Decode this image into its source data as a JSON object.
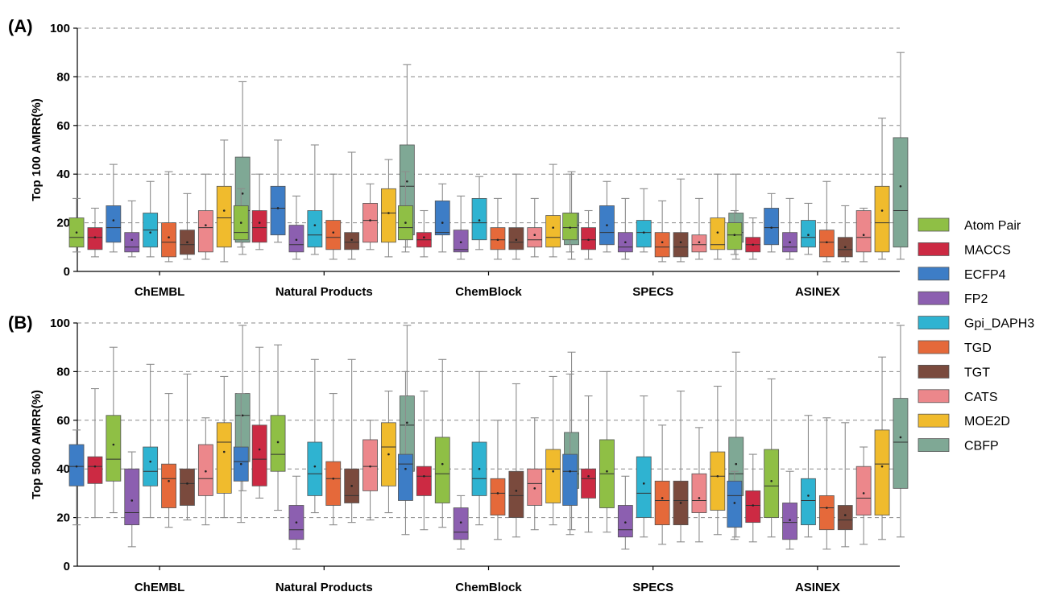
{
  "chart_data": [
    {
      "panel_label": "(A)",
      "type": "box",
      "ylabel": "Top 100 AMRR(%)",
      "ylim": [
        0,
        100
      ],
      "yticks": [
        0,
        20,
        40,
        60,
        80,
        100
      ],
      "grid": "horizontal dashed",
      "categories": [
        "ChEMBL",
        "Natural Products",
        "ChemBlock",
        "SPECS",
        "ASINEX"
      ],
      "series": [
        {
          "name": "Atom Pair",
          "boxes": [
            [
              8,
              10,
              14,
              22,
              30,
              16
            ],
            [
              10,
              13,
              16,
              27,
              34,
              20
            ],
            [
              8,
              13,
              18,
              27,
              41,
              20
            ],
            [
              8,
              13,
              18,
              24,
              40,
              18
            ],
            [
              7,
              9,
              15,
              20,
              25,
              15
            ]
          ]
        },
        {
          "name": "MACCS",
          "boxes": [
            [
              6,
              9,
              14,
              18,
              26,
              14
            ],
            [
              9,
              12,
              18,
              25,
              40,
              20
            ],
            [
              6,
              10,
              13,
              16,
              25,
              14
            ],
            [
              5,
              9,
              13,
              18,
              25,
              13
            ],
            [
              5,
              8,
              11,
              14,
              22,
              11
            ]
          ]
        },
        {
          "name": "ECFP4",
          "boxes": [
            [
              8,
              12,
              18,
              27,
              44,
              21
            ],
            [
              12,
              15,
              26,
              35,
              54,
              26
            ],
            [
              8,
              15,
              16,
              29,
              36,
              20
            ],
            [
              8,
              11,
              16,
              27,
              37,
              19
            ],
            [
              8,
              11,
              18,
              26,
              32,
              18
            ]
          ]
        },
        {
          "name": "FP2",
          "boxes": [
            [
              6,
              8,
              10,
              16,
              29,
              13
            ],
            [
              5,
              8,
              11,
              19,
              31,
              13
            ],
            [
              5,
              8,
              9,
              17,
              31,
              12
            ],
            [
              5,
              8,
              10,
              16,
              30,
              12
            ],
            [
              5,
              8,
              10,
              16,
              30,
              12
            ]
          ]
        },
        {
          "name": "Gpi_DAPH3",
          "boxes": [
            [
              6,
              10,
              17,
              24,
              37,
              16
            ],
            [
              7,
              10,
              15,
              25,
              52,
              19
            ],
            [
              9,
              13,
              20,
              30,
              39,
              21
            ],
            [
              8,
              10,
              16,
              21,
              34,
              16
            ],
            [
              7,
              10,
              14,
              21,
              28,
              15
            ]
          ]
        },
        {
          "name": "TGD",
          "boxes": [
            [
              4,
              6,
              12,
              20,
              41,
              14
            ],
            [
              5,
              9,
              14,
              21,
              40,
              16
            ],
            [
              5,
              9,
              13,
              18,
              30,
              13
            ],
            [
              4,
              6,
              10,
              16,
              29,
              12
            ],
            [
              4,
              6,
              12,
              17,
              37,
              12
            ]
          ]
        },
        {
          "name": "TGT",
          "boxes": [
            [
              5,
              7,
              11,
              17,
              32,
              12
            ],
            [
              5,
              9,
              12,
              16,
              49,
              13
            ],
            [
              5,
              9,
              12,
              18,
              40,
              13
            ],
            [
              4,
              6,
              10,
              16,
              38,
              12
            ],
            [
              4,
              6,
              9,
              14,
              27,
              10
            ]
          ]
        },
        {
          "name": "CATS",
          "boxes": [
            [
              5,
              8,
              18,
              25,
              40,
              19
            ],
            [
              9,
              12,
              21,
              28,
              36,
              21
            ],
            [
              6,
              10,
              13,
              18,
              30,
              15
            ],
            [
              5,
              8,
              11,
              15,
              30,
              12
            ],
            [
              4,
              8,
              14,
              25,
              26,
              15
            ]
          ]
        },
        {
          "name": "MOE2D",
          "boxes": [
            [
              4,
              10,
              22,
              35,
              54,
              25
            ],
            [
              6,
              12,
              24,
              34,
              46,
              24
            ],
            [
              6,
              10,
              14,
              23,
              44,
              18
            ],
            [
              5,
              9,
              11,
              22,
              40,
              16
            ],
            [
              5,
              8,
              20,
              35,
              63,
              25
            ]
          ]
        },
        {
          "name": "CBFP",
          "boxes": [
            [
              7,
              12,
              25,
              47,
              78,
              32
            ],
            [
              10,
              15,
              35,
              52,
              85,
              37
            ],
            [
              5,
              11,
              19,
              24,
              41,
              19
            ],
            [
              5,
              12,
              16,
              24,
              40,
              18
            ],
            [
              5,
              10,
              25,
              55,
              90,
              35
            ]
          ]
        }
      ]
    },
    {
      "panel_label": "(B)",
      "type": "box",
      "ylabel": "Top 5000 AMRR(%)",
      "ylim": [
        0,
        100
      ],
      "yticks": [
        0,
        20,
        40,
        60,
        80,
        100
      ],
      "grid": "horizontal dashed",
      "categories": [
        "ChEMBL",
        "Natural Products",
        "ChemBlock",
        "SPECS",
        "ASINEX"
      ],
      "series": [
        {
          "name": "ECFP4",
          "boxes": [
            [
              17,
              33,
              41,
              50,
              56,
              41
            ],
            [
              18,
              35,
              43,
              49,
              71,
              42
            ],
            [
              13,
              27,
              42,
              46,
              80,
              40
            ],
            [
              13,
              25,
              39,
              46,
              79,
              39
            ],
            [
              11,
              16,
              29,
              35,
              39,
              26
            ]
          ]
        },
        {
          "name": "MACCS",
          "boxes": [
            [
              20,
              34,
              41,
              45,
              73,
              41
            ],
            [
              28,
              33,
              44,
              58,
              90,
              48
            ],
            [
              15,
              29,
              37,
              41,
              72,
              37
            ],
            [
              14,
              28,
              36,
              40,
              70,
              37
            ],
            [
              10,
              18,
              25,
              31,
              46,
              25
            ]
          ]
        },
        {
          "name": "Atom Pair",
          "boxes": [
            [
              22,
              35,
              44,
              62,
              90,
              50
            ],
            [
              23,
              39,
              46,
              62,
              91,
              51
            ],
            [
              16,
              26,
              38,
              53,
              85,
              42
            ],
            [
              14,
              24,
              38,
              52,
              80,
              39
            ],
            [
              12,
              20,
              33,
              48,
              77,
              35
            ]
          ]
        },
        {
          "name": "FP2",
          "boxes": [
            [
              8,
              17,
              22,
              40,
              47,
              27
            ],
            [
              7,
              11,
              15,
              25,
              37,
              18
            ],
            [
              7,
              11,
              14,
              24,
              29,
              18
            ],
            [
              7,
              12,
              15,
              25,
              37,
              18
            ],
            [
              7,
              11,
              18,
              26,
              39,
              19
            ]
          ]
        },
        {
          "name": "Gpi_DAPH3",
          "boxes": [
            [
              20,
              33,
              39,
              49,
              83,
              43
            ],
            [
              22,
              29,
              38,
              51,
              85,
              41
            ],
            [
              17,
              29,
              36,
              51,
              80,
              40
            ],
            [
              12,
              20,
              30,
              45,
              70,
              34
            ],
            [
              12,
              17,
              27,
              36,
              62,
              29
            ]
          ]
        },
        {
          "name": "TGD",
          "boxes": [
            [
              16,
              24,
              36,
              42,
              71,
              35
            ],
            [
              17,
              25,
              36,
              43,
              71,
              36
            ],
            [
              11,
              21,
              30,
              36,
              60,
              30
            ],
            [
              9,
              17,
              27,
              35,
              58,
              28
            ],
            [
              7,
              15,
              24,
              29,
              61,
              24
            ]
          ]
        },
        {
          "name": "TGT",
          "boxes": [
            [
              19,
              25,
              34,
              40,
              79,
              34
            ],
            [
              18,
              26,
              29,
              40,
              85,
              33
            ],
            [
              12,
              20,
              29,
              39,
              75,
              31
            ],
            [
              10,
              17,
              27,
              35,
              72,
              26
            ],
            [
              8,
              15,
              19,
              25,
              59,
              21
            ]
          ]
        },
        {
          "name": "CATS",
          "boxes": [
            [
              17,
              29,
              36,
              50,
              61,
              39
            ],
            [
              19,
              31,
              41,
              52,
              60,
              41
            ],
            [
              15,
              25,
              34,
              40,
              61,
              32
            ],
            [
              10,
              22,
              27,
              38,
              57,
              28
            ],
            [
              9,
              21,
              28,
              41,
              49,
              30
            ]
          ]
        },
        {
          "name": "MOE2D",
          "boxes": [
            [
              20,
              30,
              51,
              59,
              78,
              47
            ],
            [
              22,
              33,
              49,
              59,
              72,
              46
            ],
            [
              17,
              26,
              40,
              48,
              78,
              39
            ],
            [
              13,
              23,
              37,
              47,
              74,
              37
            ],
            [
              11,
              21,
              42,
              56,
              86,
              41
            ]
          ]
        },
        {
          "name": "CBFP",
          "boxes": [
            [
              31,
              43,
              62,
              71,
              99,
              62
            ],
            [
              34,
              39,
              58,
              70,
              99,
              59
            ],
            [
              15,
              32,
              38,
              55,
              88,
              43
            ],
            [
              12,
              29,
              38,
              53,
              88,
              42
            ],
            [
              12,
              32,
              51,
              69,
              99,
              53
            ]
          ]
        }
      ]
    }
  ],
  "legend": [
    {
      "label": "Atom Pair",
      "color": "#8fbf45"
    },
    {
      "label": "MACCS",
      "color": "#cc2a43"
    },
    {
      "label": "ECFP4",
      "color": "#3d7dc6"
    },
    {
      "label": "FP2",
      "color": "#8c5fb0"
    },
    {
      "label": "Gpi_DAPH3",
      "color": "#2fb3d1"
    },
    {
      "label": "TGD",
      "color": "#e5693a"
    },
    {
      "label": "TGT",
      "color": "#7a4a3d"
    },
    {
      "label": "CATS",
      "color": "#ec878b"
    },
    {
      "label": "MOE2D",
      "color": "#f0bb2d"
    },
    {
      "label": "CBFP",
      "color": "#7fa895"
    }
  ]
}
